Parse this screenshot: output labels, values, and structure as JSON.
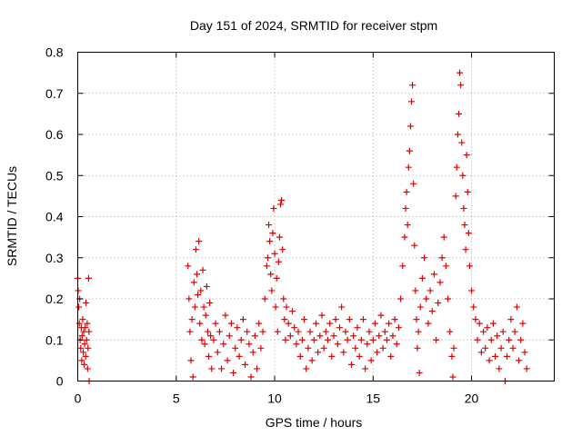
{
  "chart_data": {
    "type": "scatter",
    "title": "Day 151 of 2024, SRMTID for receiver stpm",
    "xlabel": "GPS time / hours",
    "ylabel": "SRMTID / TECUs",
    "xlim": [
      0,
      24.2
    ],
    "ylim": [
      0,
      0.8
    ],
    "x_ticks": [
      0,
      5,
      10,
      15,
      20
    ],
    "x_tick_labels": [
      "0",
      "5",
      "10",
      "15",
      "20"
    ],
    "y_ticks": [
      0,
      0.1,
      0.2,
      0.3,
      0.4,
      0.5,
      0.6,
      0.7,
      0.8
    ],
    "y_tick_labels": [
      "0",
      "0.1",
      "0.2",
      "0.3",
      "0.4",
      "0.5",
      "0.6",
      "0.7",
      "0.8"
    ],
    "grid": true,
    "marker": "+",
    "color": "#e00000",
    "series": [
      {
        "name": "SRMTID",
        "points": [
          [
            0.0,
            0.25
          ],
          [
            0.02,
            0.22
          ],
          [
            0.05,
            0.18
          ],
          [
            0.08,
            0.14
          ],
          [
            0.1,
            0.2
          ],
          [
            0.12,
            0.1
          ],
          [
            0.15,
            0.08
          ],
          [
            0.18,
            0.13
          ],
          [
            0.2,
            0.05
          ],
          [
            0.22,
            0.11
          ],
          [
            0.25,
            0.15
          ],
          [
            0.28,
            0.07
          ],
          [
            0.3,
            0.12
          ],
          [
            0.33,
            0.04
          ],
          [
            0.35,
            0.09
          ],
          [
            0.38,
            0.13
          ],
          [
            0.4,
            0.06
          ],
          [
            0.42,
            0.19
          ],
          [
            0.45,
            0.1
          ],
          [
            0.48,
            0.14
          ],
          [
            0.5,
            0.03
          ],
          [
            0.52,
            0.08
          ],
          [
            0.55,
            0.25
          ],
          [
            0.57,
            0.12
          ],
          [
            0.58,
            0.0
          ],
          [
            5.6,
            0.28
          ],
          [
            5.65,
            0.2
          ],
          [
            5.7,
            0.12
          ],
          [
            5.75,
            0.05
          ],
          [
            5.8,
            0.15
          ],
          [
            5.85,
            0.01
          ],
          [
            5.9,
            0.24
          ],
          [
            5.95,
            0.18
          ],
          [
            6.0,
            0.32
          ],
          [
            6.05,
            0.26
          ],
          [
            6.1,
            0.21
          ],
          [
            6.15,
            0.34
          ],
          [
            6.2,
            0.14
          ],
          [
            6.25,
            0.22
          ],
          [
            6.3,
            0.1
          ],
          [
            6.35,
            0.27
          ],
          [
            6.4,
            0.18
          ],
          [
            6.45,
            0.09
          ],
          [
            6.5,
            0.16
          ],
          [
            6.55,
            0.23
          ],
          [
            6.6,
            0.12
          ],
          [
            6.65,
            0.06
          ],
          [
            6.7,
            0.19
          ],
          [
            6.75,
            0.11
          ],
          [
            6.8,
            0.03
          ],
          [
            6.9,
            0.1
          ],
          [
            7.0,
            0.14
          ],
          [
            7.1,
            0.07
          ],
          [
            7.2,
            0.12
          ],
          [
            7.3,
            0.03
          ],
          [
            7.4,
            0.09
          ],
          [
            7.5,
            0.16
          ],
          [
            7.6,
            0.05
          ],
          [
            7.7,
            0.11
          ],
          [
            7.8,
            0.14
          ],
          [
            7.9,
            0.02
          ],
          [
            8.0,
            0.08
          ],
          [
            8.1,
            0.13
          ],
          [
            8.2,
            0.06
          ],
          [
            8.3,
            0.1
          ],
          [
            8.4,
            0.15
          ],
          [
            8.5,
            0.04
          ],
          [
            8.6,
            0.12
          ],
          [
            8.7,
            0.09
          ],
          [
            8.8,
            0.01
          ],
          [
            8.9,
            0.07
          ],
          [
            9.0,
            0.11
          ],
          [
            9.1,
            0.03
          ],
          [
            9.2,
            0.14
          ],
          [
            9.3,
            0.08
          ],
          [
            9.4,
            0.12
          ],
          [
            9.5,
            0.2
          ],
          [
            9.6,
            0.28
          ],
          [
            9.65,
            0.3
          ],
          [
            9.7,
            0.38
          ],
          [
            9.75,
            0.34
          ],
          [
            9.8,
            0.26
          ],
          [
            9.85,
            0.22
          ],
          [
            9.9,
            0.36
          ],
          [
            9.95,
            0.42
          ],
          [
            10.0,
            0.31
          ],
          [
            10.05,
            0.18
          ],
          [
            10.1,
            0.25
          ],
          [
            10.15,
            0.12
          ],
          [
            10.2,
            0.29
          ],
          [
            10.25,
            0.35
          ],
          [
            10.3,
            0.43
          ],
          [
            10.35,
            0.44
          ],
          [
            10.4,
            0.32
          ],
          [
            10.45,
            0.2
          ],
          [
            10.5,
            0.15
          ],
          [
            10.55,
            0.1
          ],
          [
            10.6,
            0.18
          ],
          [
            10.7,
            0.14
          ],
          [
            10.8,
            0.11
          ],
          [
            10.9,
            0.17
          ],
          [
            11.0,
            0.13
          ],
          [
            11.1,
            0.09
          ],
          [
            11.2,
            0.12
          ],
          [
            11.3,
            0.06
          ],
          [
            11.4,
            0.1
          ],
          [
            11.5,
            0.15
          ],
          [
            11.6,
            0.03
          ],
          [
            11.7,
            0.08
          ],
          [
            11.8,
            0.12
          ],
          [
            11.9,
            0.05
          ],
          [
            12.0,
            0.1
          ],
          [
            12.1,
            0.14
          ],
          [
            12.2,
            0.07
          ],
          [
            12.3,
            0.11
          ],
          [
            12.4,
            0.16
          ],
          [
            12.5,
            0.08
          ],
          [
            12.6,
            0.12
          ],
          [
            12.7,
            0.1
          ],
          [
            12.8,
            0.14
          ],
          [
            12.9,
            0.06
          ],
          [
            13.0,
            0.11
          ],
          [
            13.1,
            0.15
          ],
          [
            13.2,
            0.09
          ],
          [
            13.3,
            0.13
          ],
          [
            13.4,
            0.18
          ],
          [
            13.5,
            0.07
          ],
          [
            13.6,
            0.12
          ],
          [
            13.7,
            0.1
          ],
          [
            13.8,
            0.15
          ],
          [
            13.9,
            0.04
          ],
          [
            14.0,
            0.11
          ],
          [
            14.1,
            0.08
          ],
          [
            14.2,
            0.13
          ],
          [
            14.3,
            0.06
          ],
          [
            14.4,
            0.1
          ],
          [
            14.5,
            0.15
          ],
          [
            14.6,
            0.03
          ],
          [
            14.7,
            0.09
          ],
          [
            14.8,
            0.12
          ],
          [
            14.9,
            0.05
          ],
          [
            15.0,
            0.1
          ],
          [
            15.1,
            0.14
          ],
          [
            15.2,
            0.07
          ],
          [
            15.3,
            0.11
          ],
          [
            15.4,
            0.16
          ],
          [
            15.5,
            0.08
          ],
          [
            15.6,
            0.12
          ],
          [
            15.7,
            0.1
          ],
          [
            15.8,
            0.14
          ],
          [
            15.9,
            0.06
          ],
          [
            16.0,
            0.11
          ],
          [
            16.1,
            0.15
          ],
          [
            16.2,
            0.09
          ],
          [
            16.3,
            0.13
          ],
          [
            16.4,
            0.2
          ],
          [
            16.5,
            0.28
          ],
          [
            16.6,
            0.35
          ],
          [
            16.65,
            0.42
          ],
          [
            16.7,
            0.46
          ],
          [
            16.75,
            0.38
          ],
          [
            16.8,
            0.52
          ],
          [
            16.85,
            0.56
          ],
          [
            16.9,
            0.62
          ],
          [
            16.95,
            0.68
          ],
          [
            17.0,
            0.72
          ],
          [
            17.05,
            0.48
          ],
          [
            17.1,
            0.33
          ],
          [
            17.15,
            0.22
          ],
          [
            17.2,
            0.15
          ],
          [
            17.25,
            0.08
          ],
          [
            17.3,
            0.12
          ],
          [
            17.35,
            0.02
          ],
          [
            17.4,
            0.18
          ],
          [
            17.5,
            0.25
          ],
          [
            17.6,
            0.3
          ],
          [
            17.7,
            0.2
          ],
          [
            17.8,
            0.14
          ],
          [
            17.9,
            0.22
          ],
          [
            18.0,
            0.17
          ],
          [
            18.1,
            0.26
          ],
          [
            18.2,
            0.1
          ],
          [
            18.3,
            0.19
          ],
          [
            18.4,
            0.24
          ],
          [
            18.5,
            0.3
          ],
          [
            18.6,
            0.35
          ],
          [
            18.7,
            0.28
          ],
          [
            18.8,
            0.2
          ],
          [
            18.9,
            0.12
          ],
          [
            19.0,
            0.06
          ],
          [
            19.05,
            0.01
          ],
          [
            19.1,
            0.08
          ],
          [
            19.2,
            0.45
          ],
          [
            19.25,
            0.52
          ],
          [
            19.3,
            0.6
          ],
          [
            19.35,
            0.65
          ],
          [
            19.4,
            0.75
          ],
          [
            19.45,
            0.72
          ],
          [
            19.5,
            0.58
          ],
          [
            19.55,
            0.5
          ],
          [
            19.6,
            0.42
          ],
          [
            19.65,
            0.38
          ],
          [
            19.7,
            0.32
          ],
          [
            19.75,
            0.55
          ],
          [
            19.8,
            0.46
          ],
          [
            19.85,
            0.36
          ],
          [
            19.9,
            0.28
          ],
          [
            20.0,
            0.22
          ],
          [
            20.1,
            0.18
          ],
          [
            20.2,
            0.15
          ],
          [
            20.3,
            0.1
          ],
          [
            20.4,
            0.14
          ],
          [
            20.5,
            0.07
          ],
          [
            20.6,
            0.12
          ],
          [
            20.7,
            0.08
          ],
          [
            20.8,
            0.13
          ],
          [
            20.9,
            0.05
          ],
          [
            21.0,
            0.1
          ],
          [
            21.1,
            0.14
          ],
          [
            21.2,
            0.06
          ],
          [
            21.3,
            0.11
          ],
          [
            21.4,
            0.03
          ],
          [
            21.5,
            0.08
          ],
          [
            21.6,
            0.12
          ],
          [
            21.7,
            0.0
          ],
          [
            21.8,
            0.06
          ],
          [
            21.9,
            0.1
          ],
          [
            22.0,
            0.15
          ],
          [
            22.1,
            0.08
          ],
          [
            22.2,
            0.12
          ],
          [
            22.3,
            0.18
          ],
          [
            22.4,
            0.05
          ],
          [
            22.5,
            0.1
          ],
          [
            22.6,
            0.14
          ],
          [
            22.7,
            0.07
          ],
          [
            22.8,
            0.03
          ]
        ]
      }
    ]
  }
}
